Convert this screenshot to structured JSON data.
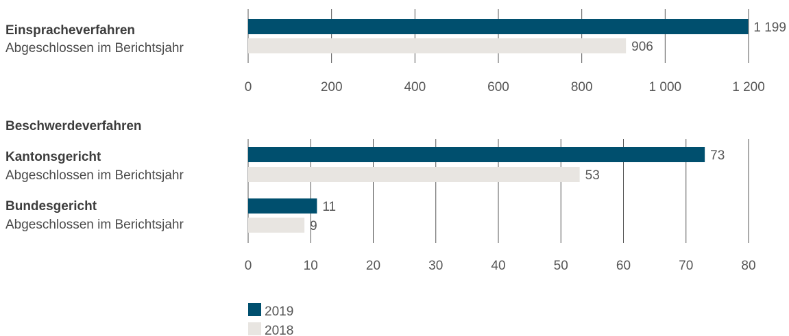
{
  "colors": {
    "y2019": "#004f6e",
    "y2018": "#e8e5e1",
    "grid": "#555555"
  },
  "section_title_beschwerde": "Beschwerdeverfahren",
  "legend": [
    {
      "label": "2019",
      "color": "#004f6e"
    },
    {
      "label": "2018",
      "color": "#e8e5e1"
    }
  ],
  "chart_data": [
    {
      "type": "bar",
      "orientation": "horizontal",
      "groups": [
        {
          "title": "Einspracheverfahren",
          "subtitle": "Abgeschlossen im Berichtsjahr",
          "values": [
            {
              "series": "2019",
              "value": 1199,
              "label": "1 199"
            },
            {
              "series": "2018",
              "value": 906,
              "label": "906"
            }
          ]
        }
      ],
      "xlim": [
        0,
        1200
      ],
      "ticks": [
        0,
        200,
        400,
        600,
        800,
        1000,
        1200
      ],
      "tick_labels": [
        "0",
        "200",
        "400",
        "600",
        "800",
        "1 000",
        "1 200"
      ],
      "grid": true
    },
    {
      "type": "bar",
      "orientation": "horizontal",
      "groups": [
        {
          "title": "Kantonsgericht",
          "subtitle": "Abgeschlossen im Berichtsjahr",
          "values": [
            {
              "series": "2019",
              "value": 73,
              "label": "73"
            },
            {
              "series": "2018",
              "value": 53,
              "label": "53"
            }
          ]
        },
        {
          "title": "Bundesgericht",
          "subtitle": "Abgeschlossen im Berichtsjahr",
          "values": [
            {
              "series": "2019",
              "value": 11,
              "label": "11"
            },
            {
              "series": "2018",
              "value": 9,
              "label": "9"
            }
          ]
        }
      ],
      "xlim": [
        0,
        80
      ],
      "ticks": [
        0,
        10,
        20,
        30,
        40,
        50,
        60,
        70,
        80
      ],
      "tick_labels": [
        "0",
        "10",
        "20",
        "30",
        "40",
        "50",
        "60",
        "70",
        "80"
      ],
      "grid": true
    }
  ]
}
